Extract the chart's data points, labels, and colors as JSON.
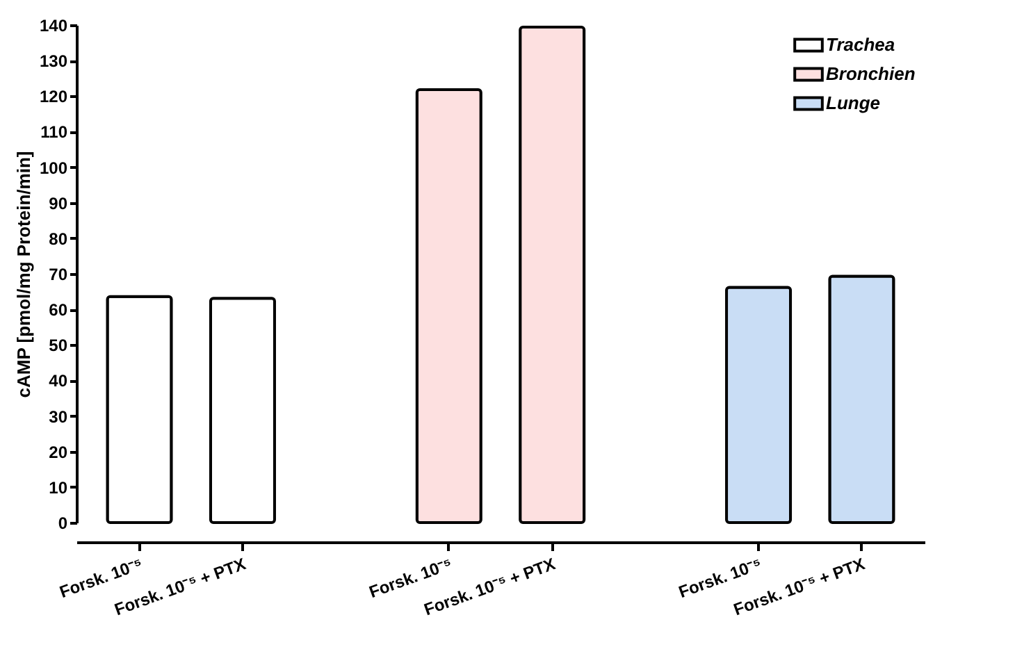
{
  "chart_data": {
    "type": "bar",
    "ylabel": "cAMP [pmol/mg Protein/min]",
    "categories": [
      "Forsk. 10⁻⁵",
      "Forsk. 10⁻⁵ + PTX",
      "Forsk. 10⁻⁵",
      "Forsk. 10⁻⁵ + PTX",
      "Forsk. 10⁻⁵",
      "Forsk. 10⁻⁵ + PTX"
    ],
    "series": [
      {
        "name": "Trachea",
        "color": "#ffffff",
        "values": [
          63.6,
          63.1,
          null,
          null,
          null,
          null
        ]
      },
      {
        "name": "Bronchien",
        "color": "#fde0e0",
        "values": [
          null,
          null,
          121.8,
          139.4,
          null,
          null
        ]
      },
      {
        "name": "Lunge",
        "color": "#c9ddf5",
        "values": [
          null,
          null,
          null,
          null,
          66.2,
          69.3
        ]
      }
    ],
    "ylim": [
      0,
      140
    ],
    "yticks": [
      0,
      10,
      20,
      30,
      40,
      50,
      60,
      70,
      80,
      90,
      100,
      110,
      120,
      130,
      140
    ],
    "grid": false,
    "legend": "top right"
  }
}
